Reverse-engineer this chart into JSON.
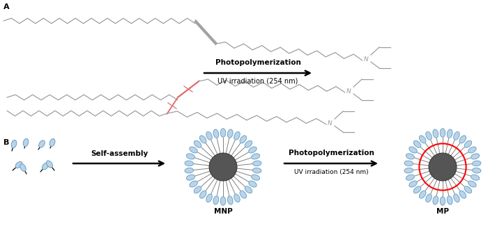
{
  "bg_color": "#ffffff",
  "label_A": "A",
  "label_B": "B",
  "arrow1_text_top": "Photopolymerization",
  "arrow1_text_bot": "UV irradiation (254 nm)",
  "arrow2_text_top": "Self-assembly",
  "arrow3_text_top": "Photopolymerization",
  "arrow3_text_bot": "UV irradiation (254 nm)",
  "MNP_label": "MNP",
  "MP_label": "MP",
  "gray_chain": "#999999",
  "red_chain": "#e07070",
  "light_blue": "#b8d4ea",
  "blue_edge": "#6699bb",
  "dark_core": "#555555",
  "black": "#000000"
}
